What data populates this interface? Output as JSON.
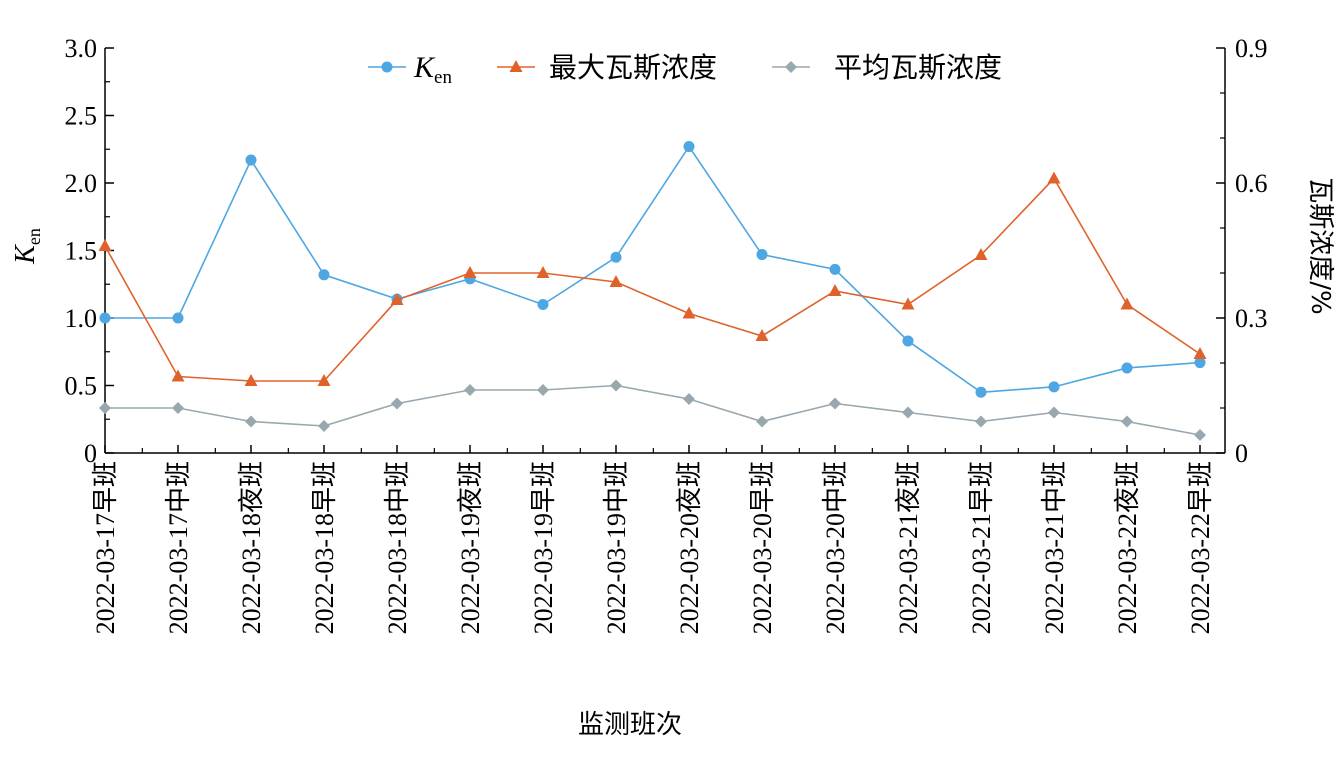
{
  "chart_data": {
    "type": "line",
    "xlabel": "监测班次",
    "ylabel_left": {
      "main": "K",
      "sub": "en"
    },
    "ylabel_right": "瓦斯浓度/%",
    "ylim_left": [
      0,
      3.0
    ],
    "ylim_right": [
      0,
      0.9
    ],
    "yticks_left": [
      "0",
      "0.5",
      "1.0",
      "1.5",
      "2.0",
      "2.5",
      "3.0"
    ],
    "yticks_right": [
      "0",
      "0.3",
      "0.6",
      "0.9"
    ],
    "categories": [
      "2022-03-17早班",
      "2022-03-17中班",
      "2022-03-18夜班",
      "2022-03-18早班",
      "2022-03-18中班",
      "2022-03-19夜班",
      "2022-03-19早班",
      "2022-03-19中班",
      "2022-03-20夜班",
      "2022-03-20早班",
      "2022-03-20中班",
      "2022-03-21夜班",
      "2022-03-21早班",
      "2022-03-21中班",
      "2022-03-22夜班",
      "2022-03-22早班"
    ],
    "legend_position": "top-center",
    "series": [
      {
        "name": "K",
        "name_sub": "en",
        "axis": "left",
        "marker": "circle",
        "color": "#4ea6e2",
        "values": [
          1.0,
          1.0,
          2.17,
          1.32,
          1.14,
          1.29,
          1.1,
          1.45,
          2.27,
          1.47,
          1.36,
          0.83,
          0.45,
          0.49,
          0.63,
          0.67
        ]
      },
      {
        "name": "最大瓦斯浓度",
        "axis": "right",
        "marker": "triangle",
        "color": "#e0622b",
        "values": [
          0.46,
          0.17,
          0.16,
          0.16,
          0.34,
          0.4,
          0.4,
          0.38,
          0.31,
          0.26,
          0.36,
          0.33,
          0.44,
          0.61,
          0.33,
          0.22
        ]
      },
      {
        "name": "平均瓦斯浓度",
        "axis": "right",
        "marker": "diamond",
        "color": "#99a7ae",
        "values": [
          0.1,
          0.1,
          0.07,
          0.06,
          0.11,
          0.14,
          0.14,
          0.15,
          0.12,
          0.07,
          0.11,
          0.09,
          0.07,
          0.09,
          0.07,
          0.04
        ]
      }
    ]
  }
}
